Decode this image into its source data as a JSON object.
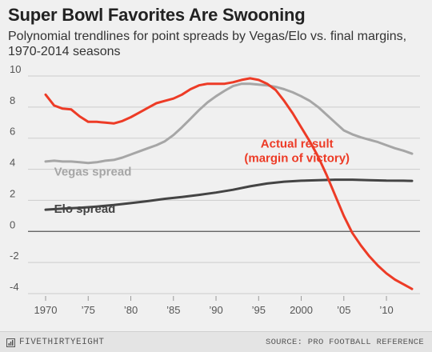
{
  "header": {
    "title": "Super Bowl Favorites Are Swooning",
    "subtitle": "Polynomial trendlines for point spreads by Vegas/Elo vs. final margins, 1970-2014 seasons"
  },
  "footer": {
    "brand": "FIVETHIRTYEIGHT",
    "source": "SOURCE: PRO FOOTBALL REFERENCE"
  },
  "chart_data": {
    "type": "line",
    "title": "Super Bowl Favorites Are Swooning",
    "xlim": [
      1970,
      2013
    ],
    "ylim": [
      -4,
      10
    ],
    "y_ticks": [
      10,
      8,
      6,
      4,
      2,
      0,
      -2,
      -4
    ],
    "x_ticks": [
      {
        "value": 1970,
        "label": "1970"
      },
      {
        "value": 1975,
        "label": "'75"
      },
      {
        "value": 1980,
        "label": "'80"
      },
      {
        "value": 1985,
        "label": "'85"
      },
      {
        "value": 1990,
        "label": "'90"
      },
      {
        "value": 1995,
        "label": "'95"
      },
      {
        "value": 2000,
        "label": "2000"
      },
      {
        "value": 2005,
        "label": "'05"
      },
      {
        "value": 2010,
        "label": "'10"
      }
    ],
    "grid": true,
    "series": [
      {
        "name": "Vegas spread",
        "color": "#a6a6a6",
        "label_lines": [
          "Vegas spread"
        ],
        "label_at": [
          1971,
          3.6
        ],
        "label_anchor": "start",
        "x": [
          1970,
          1971,
          1972,
          1973,
          1974,
          1975,
          1976,
          1977,
          1978,
          1979,
          1980,
          1981,
          1982,
          1983,
          1984,
          1985,
          1986,
          1987,
          1988,
          1989,
          1990,
          1991,
          1992,
          1993,
          1994,
          1995,
          1996,
          1997,
          1998,
          1999,
          2000,
          2001,
          2002,
          2003,
          2004,
          2005,
          2006,
          2007,
          2008,
          2009,
          2010,
          2011,
          2012,
          2013
        ],
        "y": [
          4.5,
          4.55,
          4.5,
          4.5,
          4.45,
          4.4,
          4.45,
          4.55,
          4.6,
          4.75,
          4.95,
          5.15,
          5.35,
          5.55,
          5.8,
          6.2,
          6.7,
          7.25,
          7.8,
          8.3,
          8.7,
          9.05,
          9.35,
          9.5,
          9.5,
          9.45,
          9.4,
          9.3,
          9.15,
          8.95,
          8.7,
          8.4,
          8.0,
          7.5,
          7.0,
          6.5,
          6.25,
          6.05,
          5.9,
          5.75,
          5.55,
          5.35,
          5.2,
          5.0
        ]
      },
      {
        "name": "Elo spread",
        "color": "#444444",
        "label_lines": [
          "Elo spread"
        ],
        "label_at": [
          1971,
          1.2
        ],
        "label_anchor": "start",
        "x": [
          1970,
          1972,
          1974,
          1976,
          1978,
          1980,
          1982,
          1984,
          1986,
          1988,
          1990,
          1992,
          1994,
          1996,
          1998,
          2000,
          2002,
          2004,
          2006,
          2008,
          2010,
          2012,
          2013
        ],
        "y": [
          1.4,
          1.47,
          1.52,
          1.6,
          1.7,
          1.82,
          1.95,
          2.1,
          2.22,
          2.35,
          2.5,
          2.68,
          2.9,
          3.08,
          3.2,
          3.26,
          3.3,
          3.33,
          3.33,
          3.3,
          3.27,
          3.26,
          3.25
        ]
      },
      {
        "name": "Actual result (margin of victory)",
        "color": "#ed3b26",
        "label_lines": [
          "Actual result",
          "(margin of victory)"
        ],
        "label_at": [
          1999.5,
          5.4
        ],
        "label_anchor": "middle",
        "x": [
          1970,
          1971,
          1972,
          1973,
          1974,
          1975,
          1976,
          1977,
          1978,
          1979,
          1980,
          1981,
          1982,
          1983,
          1984,
          1985,
          1986,
          1987,
          1988,
          1989,
          1990,
          1991,
          1992,
          1993,
          1994,
          1995,
          1996,
          1997,
          1998,
          1999,
          2000,
          2001,
          2002,
          2003,
          2004,
          2005,
          2006,
          2007,
          2008,
          2009,
          2010,
          2011,
          2012,
          2013
        ],
        "y": [
          8.8,
          8.1,
          7.9,
          7.85,
          7.4,
          7.05,
          7.05,
          7.0,
          6.95,
          7.1,
          7.35,
          7.65,
          7.95,
          8.25,
          8.4,
          8.55,
          8.8,
          9.15,
          9.4,
          9.5,
          9.5,
          9.5,
          9.6,
          9.75,
          9.85,
          9.75,
          9.5,
          9.1,
          8.4,
          7.6,
          6.7,
          5.8,
          4.8,
          3.6,
          2.3,
          1.0,
          -0.1,
          -0.9,
          -1.6,
          -2.2,
          -2.7,
          -3.1,
          -3.4,
          -3.7
        ]
      }
    ]
  }
}
